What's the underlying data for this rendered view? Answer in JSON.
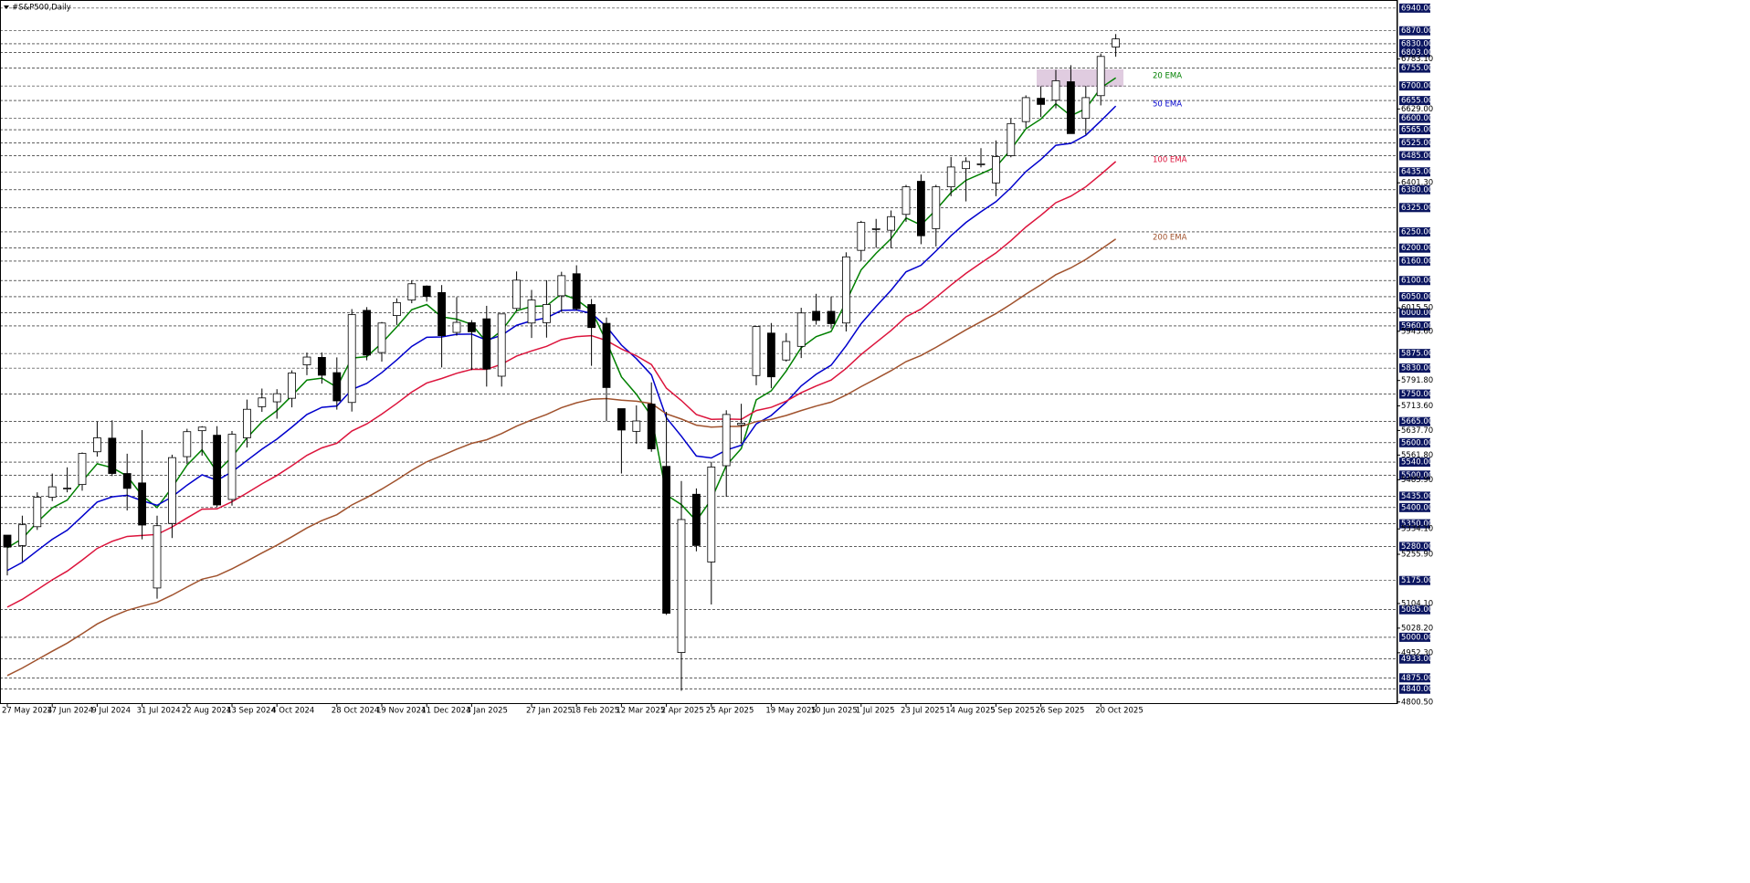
{
  "chart_data": {
    "type": "candlestick",
    "title": "#S&P500,Daily",
    "categories": [
      "27 May 2024",
      null,
      null,
      "17 Jun 2024",
      null,
      null,
      "9 Jul 2024",
      null,
      null,
      "31 Jul 2024",
      null,
      null,
      "22 Aug 2024",
      null,
      null,
      "13 Sep 2024",
      null,
      null,
      "4 Oct 2024",
      null,
      null,
      null,
      "28 Oct 2024",
      null,
      null,
      "19 Nov 2024",
      null,
      null,
      "11 Dec 2024",
      null,
      null,
      "3 Jan 2025",
      null,
      null,
      null,
      "27 Jan 2025",
      null,
      null,
      "18 Feb 2025",
      null,
      null,
      "12 Mar 2025",
      null,
      null,
      "2 Apr 2025",
      null,
      null,
      "25 Apr 2025",
      null,
      null,
      null,
      "19 May 2025",
      null,
      null,
      "10 Jun 2025",
      null,
      null,
      "1 Jul 2025",
      null,
      null,
      "23 Jul 2025",
      null,
      null,
      "14 Aug 2025",
      null,
      null,
      "5 Sep 2025",
      null,
      null,
      "26 Sep 2025",
      null,
      null,
      null,
      "20 Oct 2025",
      null
    ],
    "ohlc": [
      [
        5315,
        5315,
        5191,
        5278
      ],
      [
        5283,
        5375,
        5234,
        5347
      ],
      [
        5341,
        5447,
        5331,
        5432
      ],
      [
        5432,
        5505,
        5420,
        5464
      ],
      [
        5460,
        5524,
        5447,
        5460
      ],
      [
        5471,
        5570,
        5452,
        5567
      ],
      [
        5572,
        5666,
        5557,
        5615
      ],
      [
        5614,
        5669,
        5497,
        5505
      ],
      [
        5505,
        5566,
        5391,
        5459
      ],
      [
        5476,
        5639,
        5302,
        5346
      ],
      [
        5152,
        5375,
        5119,
        5344
      ],
      [
        5351,
        5563,
        5306,
        5554
      ],
      [
        5557,
        5643,
        5534,
        5634
      ],
      [
        5637,
        5651,
        5560,
        5648
      ],
      [
        5623,
        5651,
        5402,
        5408
      ],
      [
        5425,
        5636,
        5406,
        5626
      ],
      [
        5615,
        5733,
        5585,
        5703
      ],
      [
        5711,
        5767,
        5695,
        5738
      ],
      [
        5726,
        5765,
        5674,
        5751
      ],
      [
        5737,
        5823,
        5709,
        5815
      ],
      [
        5840,
        5878,
        5808,
        5864
      ],
      [
        5863,
        5878,
        5782,
        5808
      ],
      [
        5816,
        5863,
        5702,
        5729
      ],
      [
        5724,
        6012,
        5696,
        5995
      ],
      [
        6008,
        6018,
        5854,
        5870
      ],
      [
        5878,
        5972,
        5850,
        5969
      ],
      [
        5992,
        6045,
        5963,
        6032
      ],
      [
        6040,
        6099,
        6030,
        6090
      ],
      [
        6083,
        6085,
        6035,
        6051
      ],
      [
        6063,
        6086,
        5832,
        5930
      ],
      [
        5940,
        6049,
        5930,
        5971
      ],
      [
        5970,
        5978,
        5824,
        5942
      ],
      [
        5982,
        6022,
        5773,
        5827
      ],
      [
        5805,
        5986,
        5773,
        5997
      ],
      [
        6014,
        6128,
        6006,
        6101
      ],
      [
        5969,
        6071,
        5923,
        6040
      ],
      [
        5970,
        6101,
        5924,
        6026
      ],
      [
        6053,
        6127,
        6003,
        6115
      ],
      [
        6121,
        6147,
        6008,
        6013
      ],
      [
        6026,
        6043,
        5837,
        5955
      ],
      [
        5968,
        5986,
        5666,
        5770
      ],
      [
        5705,
        5705,
        5505,
        5639
      ],
      [
        5635,
        5715,
        5597,
        5667
      ],
      [
        5719,
        5786,
        5572,
        5581
      ],
      [
        5527,
        5695,
        5069,
        5074
      ],
      [
        4953,
        5482,
        4835,
        5363
      ],
      [
        5441,
        5459,
        5265,
        5283
      ],
      [
        5232,
        5541,
        5101,
        5525
      ],
      [
        5529,
        5700,
        5433,
        5687
      ],
      [
        5655,
        5720,
        5597,
        5660
      ],
      [
        5807,
        5959,
        5777,
        5958
      ],
      [
        5938,
        5969,
        5768,
        5803
      ],
      [
        5855,
        5938,
        5850,
        5912
      ],
      [
        5897,
        6016,
        5861,
        6000
      ],
      [
        6005,
        6059,
        5964,
        5977
      ],
      [
        6005,
        6051,
        5952,
        5967
      ],
      [
        5969,
        6187,
        5943,
        6173
      ],
      [
        6193,
        6284,
        6161,
        6279
      ],
      [
        6259,
        6290,
        6201,
        6260
      ],
      [
        6255,
        6316,
        6201,
        6297
      ],
      [
        6304,
        6395,
        6281,
        6389
      ],
      [
        6406,
        6427,
        6212,
        6238
      ],
      [
        6260,
        6395,
        6205,
        6389
      ],
      [
        6389,
        6481,
        6360,
        6450
      ],
      [
        6445,
        6480,
        6344,
        6467
      ],
      [
        6457,
        6508,
        6449,
        6460
      ],
      [
        6401,
        6532,
        6360,
        6482
      ],
      [
        6485,
        6600,
        6480,
        6584
      ],
      [
        6590,
        6671,
        6571,
        6664
      ],
      [
        6662,
        6699,
        6604,
        6643
      ],
      [
        6656,
        6750,
        6631,
        6716
      ],
      [
        6713,
        6764,
        6553,
        6553
      ],
      [
        6600,
        6700,
        6550,
        6664
      ],
      [
        6670,
        6800,
        6640,
        6791
      ],
      [
        6820,
        6860,
        6790,
        6845
      ]
    ],
    "series": [
      {
        "name": "20 EMA",
        "color": "#008000",
        "values": [
          5276,
          5304,
          5355,
          5399,
          5423,
          5481,
          5535,
          5523,
          5497,
          5437,
          5400,
          5462,
          5531,
          5578,
          5510,
          5556,
          5615,
          5664,
          5699,
          5745,
          5793,
          5799,
          5771,
          5861,
          5865,
          5907,
          5957,
          6010,
          6026,
          5988,
          5981,
          5965,
          5910,
          5945,
          6007,
          6020,
          6022,
          6059,
          6041,
          6007,
          5912,
          5803,
          5749,
          5682,
          5439,
          5409,
          5359,
          5425,
          5530,
          5582,
          5732,
          5760,
          5821,
          5893,
          5927,
          5943,
          6035,
          6133,
          6184,
          6229,
          6293,
          6271,
          6318,
          6371,
          6409,
          6429,
          6450,
          6504,
          6568,
          6598,
          6645,
          6608,
          6630,
          6694,
          6725
        ]
      },
      {
        "name": "50 EMA",
        "color": "#0000cc",
        "values": [
          5206,
          5231,
          5267,
          5302,
          5330,
          5373,
          5417,
          5433,
          5438,
          5421,
          5407,
          5433,
          5469,
          5501,
          5484,
          5510,
          5545,
          5580,
          5611,
          5648,
          5687,
          5709,
          5713,
          5764,
          5783,
          5816,
          5855,
          5897,
          5925,
          5926,
          5934,
          5935,
          5916,
          5931,
          5962,
          5976,
          5985,
          6008,
          6009,
          5999,
          5958,
          5901,
          5859,
          5809,
          5677,
          5620,
          5559,
          5553,
          5577,
          5592,
          5658,
          5684,
          5725,
          5775,
          5811,
          5839,
          5899,
          5967,
          6020,
          6070,
          6127,
          6147,
          6191,
          6238,
          6279,
          6312,
          6343,
          6386,
          6436,
          6473,
          6517,
          6523,
          6548,
          6592,
          6638
        ]
      },
      {
        "name": "100 EMA",
        "color": "#dc143c",
        "values": [
          5093,
          5117,
          5147,
          5177,
          5204,
          5238,
          5274,
          5296,
          5311,
          5314,
          5317,
          5340,
          5368,
          5395,
          5396,
          5418,
          5445,
          5473,
          5499,
          5529,
          5561,
          5584,
          5598,
          5636,
          5658,
          5688,
          5721,
          5756,
          5784,
          5798,
          5814,
          5826,
          5826,
          5842,
          5867,
          5883,
          5897,
          5918,
          5927,
          5930,
          5915,
          5889,
          5868,
          5841,
          5768,
          5730,
          5687,
          5672,
          5673,
          5672,
          5699,
          5709,
          5728,
          5754,
          5775,
          5793,
          5829,
          5872,
          5909,
          5946,
          5988,
          6012,
          6048,
          6086,
          6122,
          6154,
          6185,
          6223,
          6265,
          6301,
          6340,
          6360,
          6389,
          6427,
          6467
        ]
      },
      {
        "name": "200 EMA",
        "color": "#a0522d",
        "values": [
          4882,
          4905,
          4931,
          4957,
          4982,
          5011,
          5041,
          5064,
          5083,
          5096,
          5108,
          5130,
          5155,
          5179,
          5190,
          5211,
          5235,
          5260,
          5284,
          5310,
          5337,
          5360,
          5378,
          5408,
          5431,
          5457,
          5485,
          5515,
          5541,
          5560,
          5580,
          5598,
          5609,
          5628,
          5651,
          5670,
          5687,
          5708,
          5723,
          5734,
          5736,
          5731,
          5728,
          5721,
          5689,
          5673,
          5654,
          5648,
          5650,
          5650,
          5665,
          5672,
          5684,
          5699,
          5713,
          5725,
          5747,
          5773,
          5797,
          5822,
          5850,
          5869,
          5894,
          5921,
          5948,
          5973,
          5998,
          6027,
          6058,
          6087,
          6118,
          6139,
          6165,
          6196,
          6228
        ]
      }
    ],
    "bull_color": "#ffffff",
    "bear_color": "#000000",
    "ylim": [
      4797,
      6965
    ],
    "levels": [
      {
        "value": 6940,
        "label": "6940.00"
      },
      {
        "value": 6870,
        "label": "6870.00"
      },
      {
        "value": 6830,
        "label": "6830.00"
      },
      {
        "value": 6803,
        "label": "6803.00"
      },
      {
        "value": 6755,
        "label": "6755.00"
      },
      {
        "value": 6700,
        "label": "6700.00"
      },
      {
        "value": 6655,
        "label": "6655.00"
      },
      {
        "value": 6600,
        "label": "6600.00"
      },
      {
        "value": 6565,
        "label": "6565.00"
      },
      {
        "value": 6525,
        "label": "6525.00"
      },
      {
        "value": 6485,
        "label": "6485.00"
      },
      {
        "value": 6435,
        "label": "6435.00"
      },
      {
        "value": 6380,
        "label": "6380.00"
      },
      {
        "value": 6325,
        "label": "6325.00"
      },
      {
        "value": 6250,
        "label": "6250.00"
      },
      {
        "value": 6200,
        "label": "6200.00"
      },
      {
        "value": 6160,
        "label": "6160.00"
      },
      {
        "value": 6100,
        "label": "6100.00"
      },
      {
        "value": 6050,
        "label": "6050.00"
      },
      {
        "value": 6000,
        "label": "6000.00"
      },
      {
        "value": 5960,
        "label": "5960.00"
      },
      {
        "value": 5875,
        "label": "5875.00"
      },
      {
        "value": 5830,
        "label": "5830.00"
      },
      {
        "value": 5750,
        "label": "5750.00"
      },
      {
        "value": 5665,
        "label": "5665.00"
      },
      {
        "value": 5600,
        "label": "5600.00"
      },
      {
        "value": 5540,
        "label": "5540.00"
      },
      {
        "value": 5500,
        "label": "5500.00"
      },
      {
        "value": 5435,
        "label": "5435.00"
      },
      {
        "value": 5400,
        "label": "5400.00"
      },
      {
        "value": 5350,
        "label": "5350.00"
      },
      {
        "value": 5280,
        "label": "5280.00"
      },
      {
        "value": 5175,
        "label": "5175.00"
      },
      {
        "value": 5085,
        "label": "5085.00"
      },
      {
        "value": 5000,
        "label": "5000.00"
      },
      {
        "value": 4933,
        "label": "4933.00"
      },
      {
        "value": 4875,
        "label": "4875.00"
      },
      {
        "value": 4840,
        "label": "4840.00"
      }
    ],
    "yticks": [
      {
        "value": 6783.1,
        "label": "6783.10"
      },
      {
        "value": 6629,
        "label": "6629.00"
      },
      {
        "value": 6401.3,
        "label": "6401.30"
      },
      {
        "value": 6015.5,
        "label": "6015.50"
      },
      {
        "value": 5943.6,
        "label": "5943.60"
      },
      {
        "value": 5791.8,
        "label": "5791.80"
      },
      {
        "value": 5713.6,
        "label": "5713.60"
      },
      {
        "value": 5637.7,
        "label": "5637.70"
      },
      {
        "value": 5561.8,
        "label": "5561.80"
      },
      {
        "value": 5485.9,
        "label": "5485.90"
      },
      {
        "value": 5334.1,
        "label": "5334.10"
      },
      {
        "value": 5255.9,
        "label": "5255.90"
      },
      {
        "value": 5104.1,
        "label": "5104.10"
      },
      {
        "value": 5028.2,
        "label": "5028.20"
      },
      {
        "value": 4952.3,
        "label": "4952.30"
      },
      {
        "value": 4800.5,
        "label": "4800.50"
      }
    ]
  }
}
